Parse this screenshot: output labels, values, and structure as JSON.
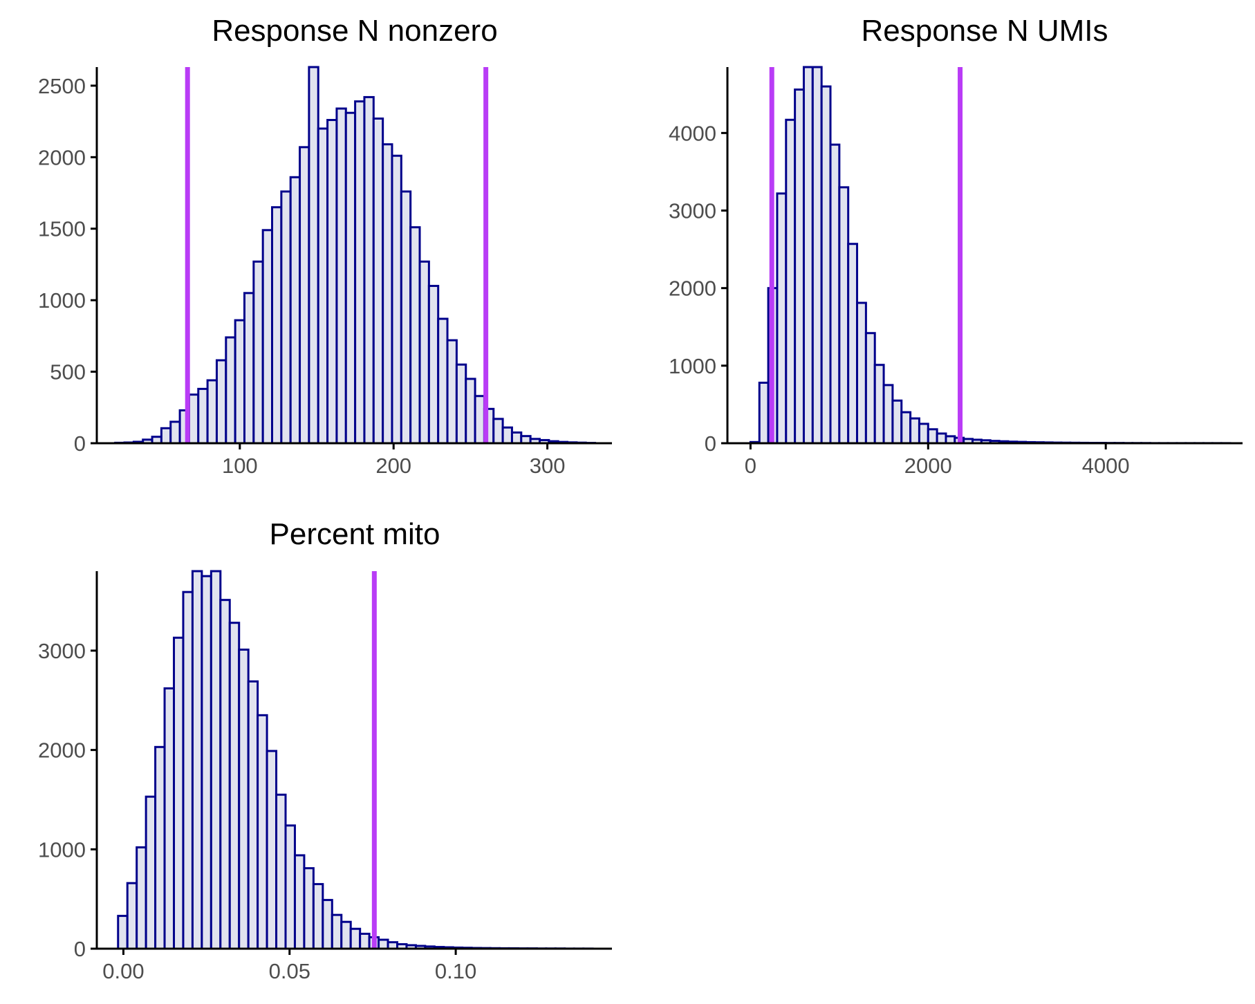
{
  "colors": {
    "bar_fill": "#e1e3ef",
    "bar_stroke": "#00008b",
    "threshold": "#b93cf6",
    "axis": "#000000",
    "tick_text": "#4d4d4d"
  },
  "chart_data": [
    {
      "type": "bar",
      "title": "Response N nonzero",
      "xlabel": "",
      "ylabel": "",
      "xlim": [
        7,
        342
      ],
      "ylim": [
        0,
        2630
      ],
      "bin_width": 6,
      "x_ticks": [
        100,
        200,
        300
      ],
      "x_tick_labels": [
        "100",
        "200",
        "300"
      ],
      "y_ticks": [
        0,
        500,
        1000,
        1500,
        2000,
        2500
      ],
      "y_tick_labels": [
        "0",
        "500",
        "1000",
        "1500",
        "2000",
        "2500"
      ],
      "bins": [
        {
          "x": 22,
          "count": 3
        },
        {
          "x": 28,
          "count": 5
        },
        {
          "x": 34,
          "count": 10
        },
        {
          "x": 40,
          "count": 25
        },
        {
          "x": 46,
          "count": 45
        },
        {
          "x": 52,
          "count": 105
        },
        {
          "x": 58,
          "count": 150
        },
        {
          "x": 64,
          "count": 230
        },
        {
          "x": 70,
          "count": 340
        },
        {
          "x": 76,
          "count": 380
        },
        {
          "x": 82,
          "count": 440
        },
        {
          "x": 88,
          "count": 580
        },
        {
          "x": 94,
          "count": 740
        },
        {
          "x": 100,
          "count": 860
        },
        {
          "x": 106,
          "count": 1050
        },
        {
          "x": 112,
          "count": 1270
        },
        {
          "x": 118,
          "count": 1490
        },
        {
          "x": 124,
          "count": 1650
        },
        {
          "x": 130,
          "count": 1760
        },
        {
          "x": 136,
          "count": 1860
        },
        {
          "x": 142,
          "count": 2070
        },
        {
          "x": 148,
          "count": 2640
        },
        {
          "x": 154,
          "count": 2200
        },
        {
          "x": 160,
          "count": 2260
        },
        {
          "x": 166,
          "count": 2340
        },
        {
          "x": 172,
          "count": 2310
        },
        {
          "x": 178,
          "count": 2390
        },
        {
          "x": 184,
          "count": 2420
        },
        {
          "x": 190,
          "count": 2270
        },
        {
          "x": 196,
          "count": 2090
        },
        {
          "x": 202,
          "count": 2010
        },
        {
          "x": 208,
          "count": 1760
        },
        {
          "x": 214,
          "count": 1510
        },
        {
          "x": 220,
          "count": 1270
        },
        {
          "x": 226,
          "count": 1100
        },
        {
          "x": 232,
          "count": 870
        },
        {
          "x": 238,
          "count": 720
        },
        {
          "x": 244,
          "count": 550
        },
        {
          "x": 250,
          "count": 450
        },
        {
          "x": 256,
          "count": 330
        },
        {
          "x": 262,
          "count": 240
        },
        {
          "x": 268,
          "count": 170
        },
        {
          "x": 274,
          "count": 110
        },
        {
          "x": 280,
          "count": 75
        },
        {
          "x": 286,
          "count": 50
        },
        {
          "x": 292,
          "count": 30
        },
        {
          "x": 298,
          "count": 22
        },
        {
          "x": 304,
          "count": 14
        },
        {
          "x": 310,
          "count": 9
        },
        {
          "x": 316,
          "count": 6
        },
        {
          "x": 322,
          "count": 4
        },
        {
          "x": 328,
          "count": 2
        }
      ],
      "thresholds": [
        66,
        260
      ]
    },
    {
      "type": "bar",
      "title": "Response N UMIs",
      "xlabel": "",
      "ylabel": "",
      "xlim": [
        -260,
        5540
      ],
      "ylim": [
        0,
        4850
      ],
      "bin_width": 100,
      "x_ticks": [
        0,
        2000,
        4000
      ],
      "x_tick_labels": [
        "0",
        "2000",
        "4000"
      ],
      "y_ticks": [
        0,
        1000,
        2000,
        3000,
        4000
      ],
      "y_tick_labels": [
        "0",
        "1000",
        "2000",
        "3000",
        "4000"
      ],
      "bins": [
        {
          "x": 50,
          "count": 15
        },
        {
          "x": 150,
          "count": 780
        },
        {
          "x": 250,
          "count": 2000
        },
        {
          "x": 350,
          "count": 3220
        },
        {
          "x": 450,
          "count": 4170
        },
        {
          "x": 550,
          "count": 4560
        },
        {
          "x": 650,
          "count": 4900
        },
        {
          "x": 750,
          "count": 4860
        },
        {
          "x": 850,
          "count": 4600
        },
        {
          "x": 950,
          "count": 3850
        },
        {
          "x": 1050,
          "count": 3300
        },
        {
          "x": 1150,
          "count": 2570
        },
        {
          "x": 1250,
          "count": 1810
        },
        {
          "x": 1350,
          "count": 1420
        },
        {
          "x": 1450,
          "count": 1010
        },
        {
          "x": 1550,
          "count": 750
        },
        {
          "x": 1650,
          "count": 550
        },
        {
          "x": 1750,
          "count": 400
        },
        {
          "x": 1850,
          "count": 320
        },
        {
          "x": 1950,
          "count": 250
        },
        {
          "x": 2050,
          "count": 180
        },
        {
          "x": 2150,
          "count": 125
        },
        {
          "x": 2250,
          "count": 90
        },
        {
          "x": 2350,
          "count": 70
        },
        {
          "x": 2450,
          "count": 55
        },
        {
          "x": 2550,
          "count": 45
        },
        {
          "x": 2650,
          "count": 38
        },
        {
          "x": 2750,
          "count": 30
        },
        {
          "x": 2850,
          "count": 25
        },
        {
          "x": 2950,
          "count": 20
        },
        {
          "x": 3050,
          "count": 17
        },
        {
          "x": 3150,
          "count": 14
        },
        {
          "x": 3250,
          "count": 12
        },
        {
          "x": 3350,
          "count": 10
        },
        {
          "x": 3450,
          "count": 8
        },
        {
          "x": 3550,
          "count": 7
        },
        {
          "x": 3650,
          "count": 6
        },
        {
          "x": 3750,
          "count": 5
        },
        {
          "x": 3850,
          "count": 4
        },
        {
          "x": 3950,
          "count": 4
        },
        {
          "x": 4050,
          "count": 3
        },
        {
          "x": 4150,
          "count": 3
        },
        {
          "x": 4250,
          "count": 2
        },
        {
          "x": 4350,
          "count": 2
        },
        {
          "x": 4450,
          "count": 2
        },
        {
          "x": 4550,
          "count": 1
        },
        {
          "x": 4650,
          "count": 1
        },
        {
          "x": 4750,
          "count": 1
        },
        {
          "x": 4850,
          "count": 1
        },
        {
          "x": 4950,
          "count": 1
        },
        {
          "x": 5050,
          "count": 1
        },
        {
          "x": 5150,
          "count": 1
        },
        {
          "x": 5250,
          "count": 1
        },
        {
          "x": 5350,
          "count": 1
        }
      ],
      "thresholds": [
        240,
        2360
      ]
    },
    {
      "type": "bar",
      "title": "Percent mito",
      "xlabel": "",
      "ylabel": "",
      "xlim": [
        -0.008,
        0.147
      ],
      "ylim": [
        0,
        3800
      ],
      "bin_width": 0.0028,
      "x_ticks": [
        0,
        0.05,
        0.1
      ],
      "x_tick_labels": [
        "0.00",
        "0.05",
        "0.10"
      ],
      "y_ticks": [
        0,
        1000,
        2000,
        3000
      ],
      "y_tick_labels": [
        "0",
        "1000",
        "2000",
        "3000"
      ],
      "bins": [
        {
          "x": -0.0002,
          "count": 330
        },
        {
          "x": 0.0026,
          "count": 660
        },
        {
          "x": 0.0054,
          "count": 1020
        },
        {
          "x": 0.0082,
          "count": 1530
        },
        {
          "x": 0.011,
          "count": 2030
        },
        {
          "x": 0.0138,
          "count": 2620
        },
        {
          "x": 0.0166,
          "count": 3130
        },
        {
          "x": 0.0194,
          "count": 3590
        },
        {
          "x": 0.0222,
          "count": 3830
        },
        {
          "x": 0.025,
          "count": 3750
        },
        {
          "x": 0.0278,
          "count": 3850
        },
        {
          "x": 0.0306,
          "count": 3510
        },
        {
          "x": 0.0334,
          "count": 3280
        },
        {
          "x": 0.0362,
          "count": 3010
        },
        {
          "x": 0.039,
          "count": 2690
        },
        {
          "x": 0.0418,
          "count": 2350
        },
        {
          "x": 0.0446,
          "count": 1990
        },
        {
          "x": 0.0474,
          "count": 1550
        },
        {
          "x": 0.0502,
          "count": 1240
        },
        {
          "x": 0.053,
          "count": 940
        },
        {
          "x": 0.0558,
          "count": 810
        },
        {
          "x": 0.0586,
          "count": 650
        },
        {
          "x": 0.0614,
          "count": 490
        },
        {
          "x": 0.0642,
          "count": 340
        },
        {
          "x": 0.067,
          "count": 270
        },
        {
          "x": 0.0698,
          "count": 200
        },
        {
          "x": 0.0726,
          "count": 150
        },
        {
          "x": 0.0754,
          "count": 115
        },
        {
          "x": 0.0782,
          "count": 90
        },
        {
          "x": 0.081,
          "count": 65
        },
        {
          "x": 0.0838,
          "count": 45
        },
        {
          "x": 0.0866,
          "count": 35
        },
        {
          "x": 0.0894,
          "count": 28
        },
        {
          "x": 0.0922,
          "count": 22
        },
        {
          "x": 0.095,
          "count": 17
        },
        {
          "x": 0.0978,
          "count": 14
        },
        {
          "x": 0.1006,
          "count": 11
        },
        {
          "x": 0.1034,
          "count": 9
        },
        {
          "x": 0.1062,
          "count": 7
        },
        {
          "x": 0.109,
          "count": 6
        },
        {
          "x": 0.1118,
          "count": 5
        },
        {
          "x": 0.1146,
          "count": 4
        },
        {
          "x": 0.1174,
          "count": 4
        },
        {
          "x": 0.1202,
          "count": 3
        },
        {
          "x": 0.123,
          "count": 3
        },
        {
          "x": 0.1258,
          "count": 2
        },
        {
          "x": 0.1286,
          "count": 2
        },
        {
          "x": 0.1314,
          "count": 2
        },
        {
          "x": 0.1342,
          "count": 1
        },
        {
          "x": 0.137,
          "count": 1
        },
        {
          "x": 0.1398,
          "count": 1
        }
      ],
      "thresholds": [
        0.0755
      ]
    }
  ]
}
